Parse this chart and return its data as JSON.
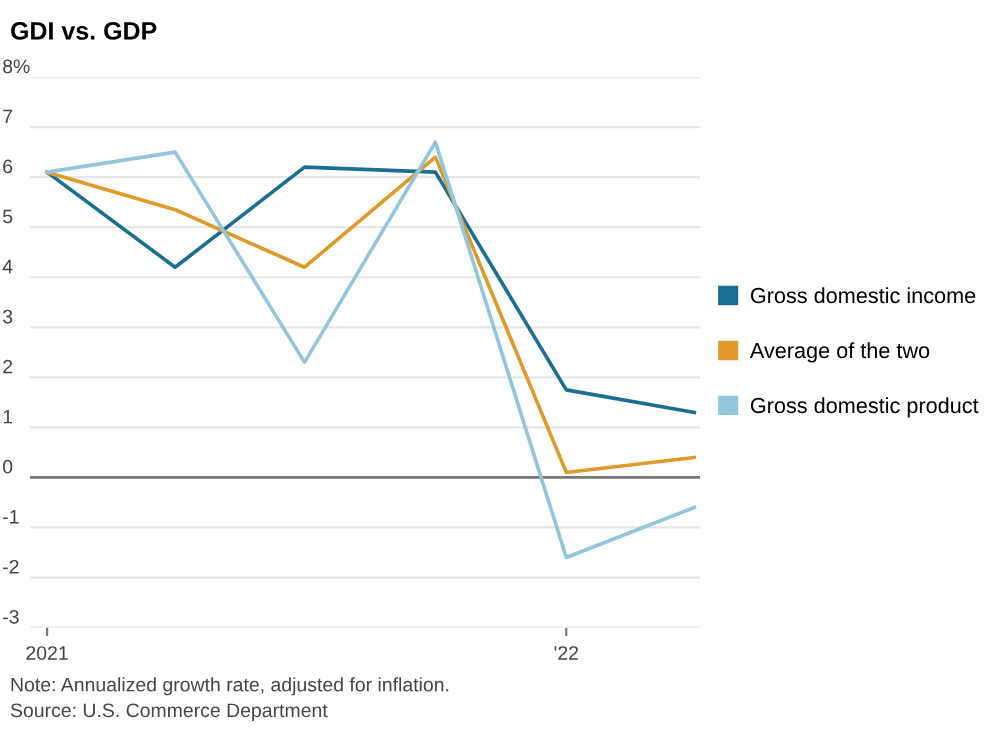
{
  "chart_data": {
    "type": "line",
    "title": "GDI vs. GDP",
    "x": [
      "2021-01",
      "2021-04",
      "2021-07",
      "2021-10",
      "2022-01",
      "2022-04"
    ],
    "series": [
      {
        "name": "Gross domestic income",
        "color": "#1a6e93",
        "values": [
          6.1,
          4.2,
          6.2,
          6.1,
          1.75,
          1.3
        ]
      },
      {
        "name": "Average of the two",
        "color": "#e09a2a",
        "values": [
          6.1,
          5.35,
          4.2,
          6.4,
          0.1,
          0.4
        ]
      },
      {
        "name": "Gross domestic product",
        "color": "#92c5de",
        "values": [
          6.1,
          6.5,
          2.3,
          6.7,
          -1.6,
          -0.6
        ]
      }
    ],
    "xlim": [
      "2020-12-20",
      "2022-04-05"
    ],
    "xticks": [
      {
        "value": "2021-01",
        "label": "2021"
      },
      {
        "value": "2022-01",
        "label": "'22"
      }
    ],
    "ylim": [
      -3,
      8
    ],
    "yticks": [
      {
        "value": 8,
        "label": "8%"
      },
      7,
      6,
      5,
      4,
      3,
      2,
      1,
      0,
      -1,
      -2,
      -3
    ],
    "ref_lines": [
      {
        "axis": "y",
        "value": 0,
        "color": "#777777"
      }
    ],
    "grid": "y",
    "legend": "right",
    "marker": "none",
    "line_style": "solid",
    "annotations": [
      "Note: Annualized growth rate, adjusted for inflation.",
      "Source: U.S. Commerce Department"
    ]
  }
}
